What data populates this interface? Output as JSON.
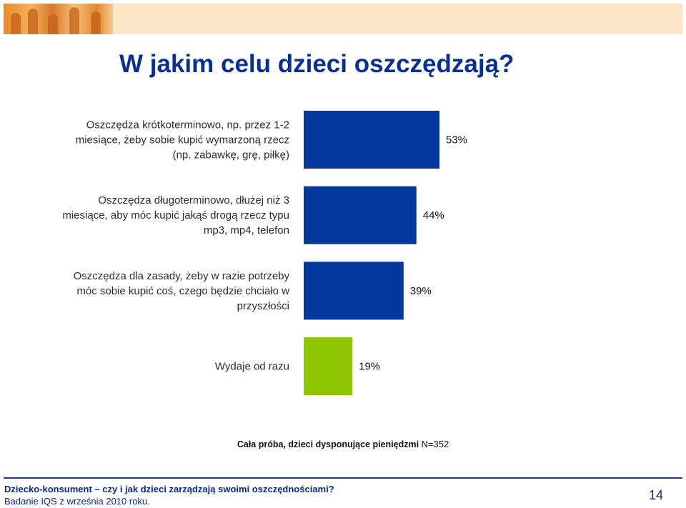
{
  "slide": {
    "title": "W jakim celu dzieci oszczędzają?",
    "sample_bold": "Cała próba, dzieci dysponujące pieniędzmi ",
    "sample_n": "N=352",
    "footer_title": "Dziecko-konsument – czy i jak dzieci zarządzają swoimi oszczędnościami?",
    "footer_sub": "Badanie IQS z września 2010 roku.",
    "page_number": "14"
  },
  "colors": {
    "bar_primary": "#05389c",
    "bar_highlight": "#8fc400",
    "title": "#0a2f8f"
  },
  "chart_data": {
    "type": "bar",
    "orientation": "horizontal",
    "categories": [
      [
        "Oszczędza krótkoterminowo, np. przez 1-2",
        "miesiące, żeby sobie kupić wymarzoną rzecz",
        "(np. zabawkę, grę, piłkę)"
      ],
      [
        "Oszczędza długoterminowo, dłużej niż 3",
        "miesiące, aby móc kupić jakąś drogą rzecz typu",
        "mp3, mp4, telefon"
      ],
      [
        "Oszczędza dla zasady, żeby w razie potrzeby",
        "móc sobie kupić coś, czego będzie chciało w",
        "przyszłości"
      ],
      [
        "Wydaje od razu"
      ]
    ],
    "values": [
      53,
      44,
      39,
      19
    ],
    "value_labels": [
      "53%",
      "44%",
      "39%",
      "19%"
    ],
    "xlim": [
      0,
      100
    ],
    "grid": false,
    "legend": "none"
  }
}
